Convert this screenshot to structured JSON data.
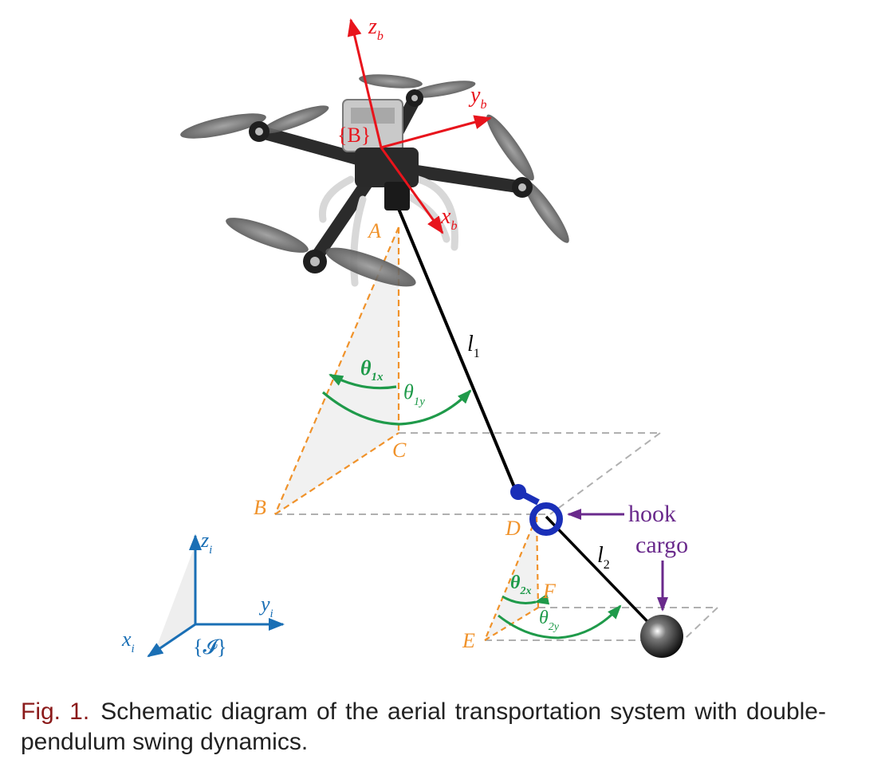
{
  "colors": {
    "body_frame": "#e8141c",
    "inertial_frame": "#1a6fb5",
    "angles": "#1f9a4a",
    "construction": "#f0922a",
    "cable": "#000000",
    "hook": "#1a2fb8",
    "annotation": "#6a2a8c",
    "plane_dash": "#b0b0b0",
    "caption_label": "#8b1a1a"
  },
  "body_frame": {
    "label": "{B}",
    "axes": [
      {
        "name": "z",
        "sub": "b"
      },
      {
        "name": "y",
        "sub": "b"
      },
      {
        "name": "x",
        "sub": "b"
      }
    ]
  },
  "inertial_frame": {
    "label": "{𝓘}",
    "axes": [
      {
        "name": "z",
        "sub": "i"
      },
      {
        "name": "y",
        "sub": "i"
      },
      {
        "name": "x",
        "sub": "i"
      }
    ]
  },
  "points": {
    "A": "A",
    "B": "B",
    "C": "C",
    "D": "D",
    "E": "E",
    "F": "F"
  },
  "cables": {
    "l1": {
      "name": "l",
      "sub": "1"
    },
    "l2": {
      "name": "l",
      "sub": "2"
    }
  },
  "angles": {
    "theta1x": {
      "name": "θ",
      "sub": "1x"
    },
    "theta1y": {
      "name": "θ",
      "sub": "1y"
    },
    "theta2x": {
      "name": "θ",
      "sub": "2x"
    },
    "theta2y": {
      "name": "θ",
      "sub": "2y"
    }
  },
  "annotations": {
    "hook": "hook",
    "cargo": "cargo"
  },
  "caption": {
    "label": "Fig. 1.",
    "text": "Schematic diagram of the aerial transportation system with double-pendulum swing dynamics."
  }
}
